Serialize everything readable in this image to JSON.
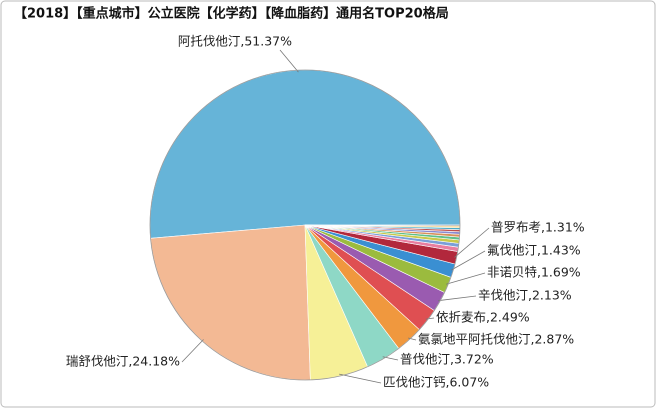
{
  "chart_data": {
    "type": "pie",
    "title": "【2018】【重点城市】公立医院【化学药】【降血脂药】通用名TOP20格局",
    "labels": [
      "阿托伐他汀,51.37%",
      "瑞舒伐他汀,24.18%",
      "匹伐他汀钙,6.07%",
      "普伐他汀,3.72%",
      "氨氯地平阿托伐他汀,2.87%",
      "依折麦布,2.49%",
      "辛伐他汀,2.13%",
      "非诺贝特,1.69%",
      "氟伐他汀,1.43%",
      "普罗布考,1.31%",
      null,
      null,
      null,
      null,
      null,
      null,
      null,
      null,
      null,
      null
    ],
    "values": [
      51.37,
      24.18,
      6.07,
      3.72,
      2.87,
      2.49,
      2.13,
      1.69,
      1.43,
      1.31,
      0.45,
      0.4,
      0.35,
      0.3,
      0.28,
      0.26,
      0.22,
      0.2,
      0.16,
      0.12
    ],
    "colors": [
      "#66b4d8",
      "#f3b994",
      "#f6f097",
      "#8ed8c6",
      "#f0983e",
      "#df4f52",
      "#9a5bb0",
      "#9bbb3e",
      "#3a8fd2",
      "#b2283c",
      "#e87ea0",
      "#7a9fd8",
      "#c9c94a",
      "#5fbf8a",
      "#d8905a",
      "#8a8ad0",
      "#c0504d",
      "#4bacc6",
      "#f2c35c",
      "#a0a0a0"
    ]
  }
}
